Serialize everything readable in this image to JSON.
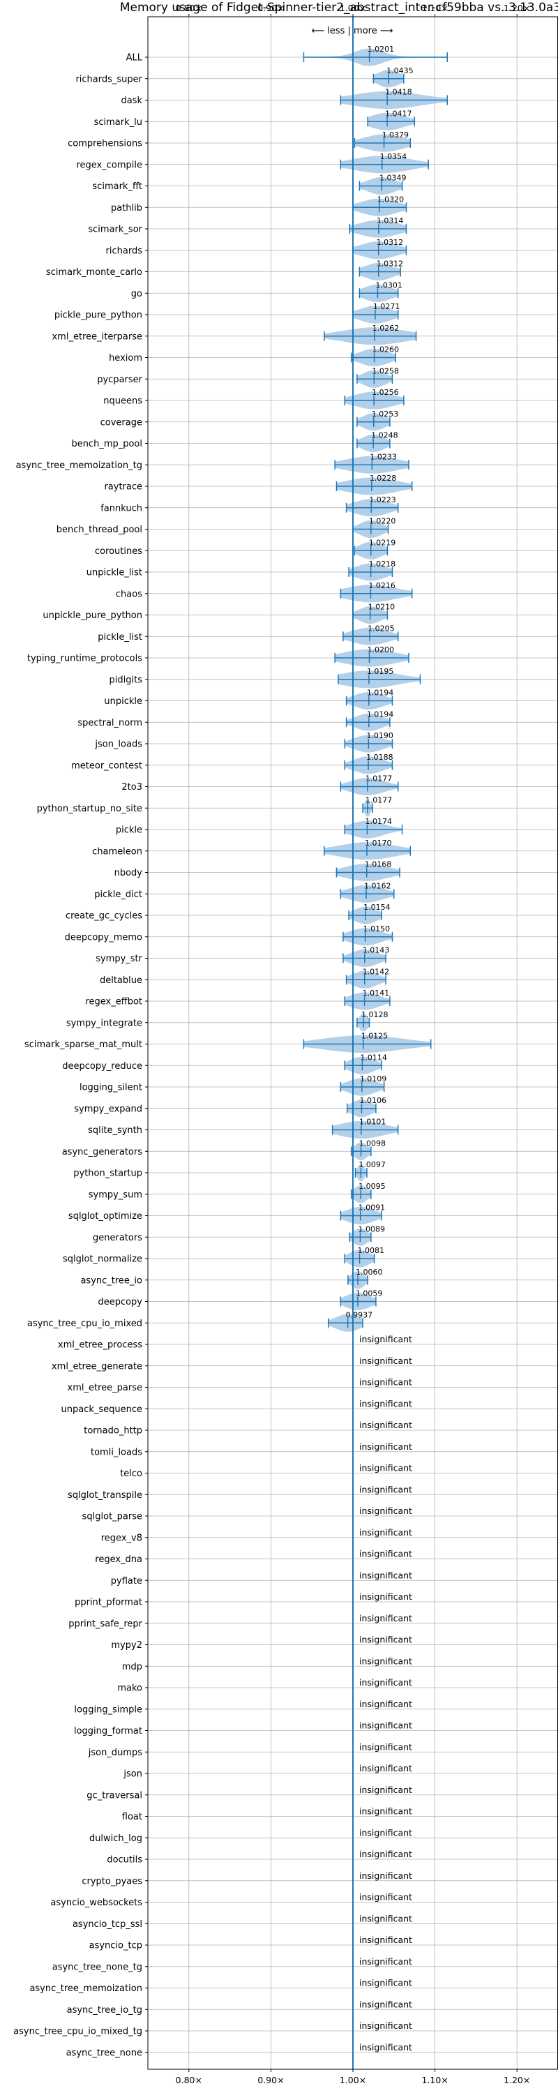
{
  "chart_data": {
    "type": "violin",
    "title": "Memory usage of Fidget-Spinner-tier2_abstract_inter-cf59bba vs. 3.13.0a3",
    "subtitle": "⟵ less | more ⟶",
    "xlabel": "",
    "ylabel": "",
    "xlim": [
      0.75,
      1.25
    ],
    "xticks": [
      {
        "value": 0.8,
        "label": "0.80×"
      },
      {
        "value": 0.9,
        "label": "0.90×"
      },
      {
        "value": 1.0,
        "label": "1.00×"
      },
      {
        "value": 1.1,
        "label": "1.10×"
      },
      {
        "value": 1.2,
        "label": "1.20×"
      }
    ],
    "reference_line": 1.0,
    "grid": true,
    "colors": {
      "violin": "#a6c8e8",
      "line": "#1f77b4",
      "grid": "#b0b0b0",
      "text": "#000000"
    },
    "insignificant_label": "insignificant",
    "benchmarks": [
      {
        "name": "ALL",
        "value": "1.0201",
        "center": 1.0201,
        "min": 0.94,
        "max": 1.115,
        "spread": 0.025,
        "significant": true
      },
      {
        "name": "richards_super",
        "value": "1.0435",
        "center": 1.0435,
        "min": 1.025,
        "max": 1.062,
        "spread": 0.02,
        "significant": true
      },
      {
        "name": "dask",
        "value": "1.0418",
        "center": 1.0418,
        "min": 0.985,
        "max": 1.115,
        "spread": 0.06,
        "significant": true
      },
      {
        "name": "scimark_lu",
        "value": "1.0417",
        "center": 1.0417,
        "min": 1.018,
        "max": 1.075,
        "spread": 0.03,
        "significant": true
      },
      {
        "name": "comprehensions",
        "value": "1.0379",
        "center": 1.0379,
        "min": 1.002,
        "max": 1.07,
        "spread": 0.035,
        "significant": true
      },
      {
        "name": "regex_compile",
        "value": "1.0354",
        "center": 1.0354,
        "min": 0.985,
        "max": 1.092,
        "spread": 0.05,
        "significant": true
      },
      {
        "name": "scimark_fft",
        "value": "1.0349",
        "center": 1.0349,
        "min": 1.008,
        "max": 1.06,
        "spread": 0.025,
        "significant": true
      },
      {
        "name": "pathlib",
        "value": "1.0320",
        "center": 1.032,
        "min": 1.0,
        "max": 1.065,
        "spread": 0.032,
        "significant": true
      },
      {
        "name": "scimark_sor",
        "value": "1.0314",
        "center": 1.0314,
        "min": 0.996,
        "max": 1.065,
        "spread": 0.035,
        "significant": true
      },
      {
        "name": "richards",
        "value": "1.0312",
        "center": 1.0312,
        "min": 1.0,
        "max": 1.065,
        "spread": 0.032,
        "significant": true
      },
      {
        "name": "scimark_monte_carlo",
        "value": "1.0312",
        "center": 1.0312,
        "min": 1.008,
        "max": 1.058,
        "spread": 0.025,
        "significant": true
      },
      {
        "name": "go",
        "value": "1.0301",
        "center": 1.0301,
        "min": 1.008,
        "max": 1.055,
        "spread": 0.025,
        "significant": true
      },
      {
        "name": "pickle_pure_python",
        "value": "1.0271",
        "center": 1.0271,
        "min": 1.0,
        "max": 1.055,
        "spread": 0.028,
        "significant": true
      },
      {
        "name": "xml_etree_iterparse",
        "value": "1.0262",
        "center": 1.0262,
        "min": 0.965,
        "max": 1.077,
        "spread": 0.055,
        "significant": true
      },
      {
        "name": "hexiom",
        "value": "1.0260",
        "center": 1.026,
        "min": 0.998,
        "max": 1.052,
        "spread": 0.026,
        "significant": true
      },
      {
        "name": "pycparser",
        "value": "1.0258",
        "center": 1.0258,
        "min": 1.005,
        "max": 1.048,
        "spread": 0.02,
        "significant": true
      },
      {
        "name": "nqueens",
        "value": "1.0256",
        "center": 1.0256,
        "min": 0.99,
        "max": 1.062,
        "spread": 0.035,
        "significant": true
      },
      {
        "name": "coverage",
        "value": "1.0253",
        "center": 1.0253,
        "min": 1.005,
        "max": 1.045,
        "spread": 0.02,
        "significant": true
      },
      {
        "name": "bench_mp_pool",
        "value": "1.0248",
        "center": 1.0248,
        "min": 1.005,
        "max": 1.045,
        "spread": 0.02,
        "significant": true
      },
      {
        "name": "async_tree_memoization_tg",
        "value": "1.0233",
        "center": 1.0233,
        "min": 0.978,
        "max": 1.068,
        "spread": 0.045,
        "significant": true
      },
      {
        "name": "raytrace",
        "value": "1.0228",
        "center": 1.0228,
        "min": 0.98,
        "max": 1.072,
        "spread": 0.045,
        "significant": true
      },
      {
        "name": "fannkuch",
        "value": "1.0223",
        "center": 1.0223,
        "min": 0.992,
        "max": 1.055,
        "spread": 0.03,
        "significant": true
      },
      {
        "name": "bench_thread_pool",
        "value": "1.0220",
        "center": 1.022,
        "min": 1.0,
        "max": 1.043,
        "spread": 0.02,
        "significant": true
      },
      {
        "name": "coroutines",
        "value": "1.0219",
        "center": 1.0219,
        "min": 1.002,
        "max": 1.042,
        "spread": 0.02,
        "significant": true
      },
      {
        "name": "unpickle_list",
        "value": "1.0218",
        "center": 1.0218,
        "min": 0.995,
        "max": 1.048,
        "spread": 0.026,
        "significant": true
      },
      {
        "name": "chaos",
        "value": "1.0216",
        "center": 1.0216,
        "min": 0.985,
        "max": 1.072,
        "spread": 0.045,
        "significant": true
      },
      {
        "name": "unpickle_pure_python",
        "value": "1.0210",
        "center": 1.021,
        "min": 1.0,
        "max": 1.042,
        "spread": 0.02,
        "significant": true
      },
      {
        "name": "pickle_list",
        "value": "1.0205",
        "center": 1.0205,
        "min": 0.988,
        "max": 1.055,
        "spread": 0.032,
        "significant": true
      },
      {
        "name": "typing_runtime_protocols",
        "value": "1.0200",
        "center": 1.02,
        "min": 0.978,
        "max": 1.068,
        "spread": 0.045,
        "significant": true
      },
      {
        "name": "pidigits",
        "value": "1.0195",
        "center": 1.0195,
        "min": 0.982,
        "max": 1.082,
        "spread": 0.05,
        "significant": true
      },
      {
        "name": "unpickle",
        "value": "1.0194",
        "center": 1.0194,
        "min": 0.992,
        "max": 1.048,
        "spread": 0.026,
        "significant": true
      },
      {
        "name": "spectral_norm",
        "value": "1.0194",
        "center": 1.0194,
        "min": 0.992,
        "max": 1.045,
        "spread": 0.024,
        "significant": true
      },
      {
        "name": "json_loads",
        "value": "1.0190",
        "center": 1.019,
        "min": 0.99,
        "max": 1.048,
        "spread": 0.026,
        "significant": true
      },
      {
        "name": "meteor_contest",
        "value": "1.0188",
        "center": 1.0188,
        "min": 0.99,
        "max": 1.048,
        "spread": 0.026,
        "significant": true
      },
      {
        "name": "2to3",
        "value": "1.0177",
        "center": 1.0177,
        "min": 0.985,
        "max": 1.055,
        "spread": 0.03,
        "significant": true
      },
      {
        "name": "python_startup_no_site",
        "value": "1.0177",
        "center": 1.0177,
        "min": 1.012,
        "max": 1.024,
        "spread": 0.005,
        "significant": true
      },
      {
        "name": "pickle",
        "value": "1.0174",
        "center": 1.0174,
        "min": 0.99,
        "max": 1.06,
        "spread": 0.03,
        "significant": true
      },
      {
        "name": "chameleon",
        "value": "1.0170",
        "center": 1.017,
        "min": 0.965,
        "max": 1.07,
        "spread": 0.05,
        "significant": true
      },
      {
        "name": "nbody",
        "value": "1.0168",
        "center": 1.0168,
        "min": 0.98,
        "max": 1.057,
        "spread": 0.038,
        "significant": true
      },
      {
        "name": "pickle_dict",
        "value": "1.0162",
        "center": 1.0162,
        "min": 0.985,
        "max": 1.05,
        "spread": 0.03,
        "significant": true
      },
      {
        "name": "create_gc_cycles",
        "value": "1.0154",
        "center": 1.0154,
        "min": 0.995,
        "max": 1.035,
        "spread": 0.02,
        "significant": true
      },
      {
        "name": "deepcopy_memo",
        "value": "1.0150",
        "center": 1.015,
        "min": 0.988,
        "max": 1.048,
        "spread": 0.028,
        "significant": true
      },
      {
        "name": "sympy_str",
        "value": "1.0143",
        "center": 1.0143,
        "min": 0.988,
        "max": 1.04,
        "spread": 0.024,
        "significant": true
      },
      {
        "name": "deltablue",
        "value": "1.0142",
        "center": 1.0142,
        "min": 0.992,
        "max": 1.04,
        "spread": 0.022,
        "significant": true
      },
      {
        "name": "regex_effbot",
        "value": "1.0141",
        "center": 1.0141,
        "min": 0.99,
        "max": 1.045,
        "spread": 0.026,
        "significant": true
      },
      {
        "name": "sympy_integrate",
        "value": "1.0128",
        "center": 1.0128,
        "min": 1.005,
        "max": 1.02,
        "spread": 0.008,
        "significant": true
      },
      {
        "name": "scimark_sparse_mat_mult",
        "value": "1.0125",
        "center": 1.0125,
        "min": 0.94,
        "max": 1.095,
        "spread": 0.07,
        "significant": true
      },
      {
        "name": "deepcopy_reduce",
        "value": "1.0114",
        "center": 1.0114,
        "min": 0.99,
        "max": 1.035,
        "spread": 0.022,
        "significant": true
      },
      {
        "name": "logging_silent",
        "value": "1.0109",
        "center": 1.0109,
        "min": 0.985,
        "max": 1.038,
        "spread": 0.025,
        "significant": true
      },
      {
        "name": "sympy_expand",
        "value": "1.0106",
        "center": 1.0106,
        "min": 0.993,
        "max": 1.028,
        "spread": 0.018,
        "significant": true
      },
      {
        "name": "sqlite_synth",
        "value": "1.0101",
        "center": 1.0101,
        "min": 0.975,
        "max": 1.055,
        "spread": 0.04,
        "significant": true
      },
      {
        "name": "async_generators",
        "value": "1.0098",
        "center": 1.0098,
        "min": 0.998,
        "max": 1.022,
        "spread": 0.012,
        "significant": true
      },
      {
        "name": "python_startup",
        "value": "1.0097",
        "center": 1.0097,
        "min": 1.003,
        "max": 1.017,
        "spread": 0.006,
        "significant": true
      },
      {
        "name": "sympy_sum",
        "value": "1.0095",
        "center": 1.0095,
        "min": 0.998,
        "max": 1.022,
        "spread": 0.012,
        "significant": true
      },
      {
        "name": "sqlglot_optimize",
        "value": "1.0091",
        "center": 1.0091,
        "min": 0.985,
        "max": 1.035,
        "spread": 0.025,
        "significant": true
      },
      {
        "name": "generators",
        "value": "1.0089",
        "center": 1.0089,
        "min": 0.996,
        "max": 1.022,
        "spread": 0.013,
        "significant": true
      },
      {
        "name": "sqlglot_normalize",
        "value": "1.0081",
        "center": 1.0081,
        "min": 0.99,
        "max": 1.026,
        "spread": 0.018,
        "significant": true
      },
      {
        "name": "async_tree_io",
        "value": "1.0060",
        "center": 1.006,
        "min": 0.994,
        "max": 1.018,
        "spread": 0.012,
        "significant": true
      },
      {
        "name": "deepcopy",
        "value": "1.0059",
        "center": 1.0059,
        "min": 0.985,
        "max": 1.028,
        "spread": 0.022,
        "significant": true
      },
      {
        "name": "async_tree_cpu_io_mixed",
        "value": "0.9937",
        "center": 0.9937,
        "min": 0.97,
        "max": 1.012,
        "spread": 0.022,
        "significant": true
      },
      {
        "name": "xml_etree_process",
        "significant": false
      },
      {
        "name": "xml_etree_generate",
        "significant": false
      },
      {
        "name": "xml_etree_parse",
        "significant": false
      },
      {
        "name": "unpack_sequence",
        "significant": false
      },
      {
        "name": "tornado_http",
        "significant": false
      },
      {
        "name": "tomli_loads",
        "significant": false
      },
      {
        "name": "telco",
        "significant": false
      },
      {
        "name": "sqlglot_transpile",
        "significant": false
      },
      {
        "name": "sqlglot_parse",
        "significant": false
      },
      {
        "name": "regex_v8",
        "significant": false
      },
      {
        "name": "regex_dna",
        "significant": false
      },
      {
        "name": "pyflate",
        "significant": false
      },
      {
        "name": "pprint_pformat",
        "significant": false
      },
      {
        "name": "pprint_safe_repr",
        "significant": false
      },
      {
        "name": "mypy2",
        "significant": false
      },
      {
        "name": "mdp",
        "significant": false
      },
      {
        "name": "mako",
        "significant": false
      },
      {
        "name": "logging_simple",
        "significant": false
      },
      {
        "name": "logging_format",
        "significant": false
      },
      {
        "name": "json_dumps",
        "significant": false
      },
      {
        "name": "json",
        "significant": false
      },
      {
        "name": "gc_traversal",
        "significant": false
      },
      {
        "name": "float",
        "significant": false
      },
      {
        "name": "dulwich_log",
        "significant": false
      },
      {
        "name": "docutils",
        "significant": false
      },
      {
        "name": "crypto_pyaes",
        "significant": false
      },
      {
        "name": "asyncio_websockets",
        "significant": false
      },
      {
        "name": "asyncio_tcp_ssl",
        "significant": false
      },
      {
        "name": "asyncio_tcp",
        "significant": false
      },
      {
        "name": "async_tree_none_tg",
        "significant": false
      },
      {
        "name": "async_tree_memoization",
        "significant": false
      },
      {
        "name": "async_tree_io_tg",
        "significant": false
      },
      {
        "name": "async_tree_cpu_io_mixed_tg",
        "significant": false
      },
      {
        "name": "async_tree_none",
        "significant": false
      }
    ]
  }
}
